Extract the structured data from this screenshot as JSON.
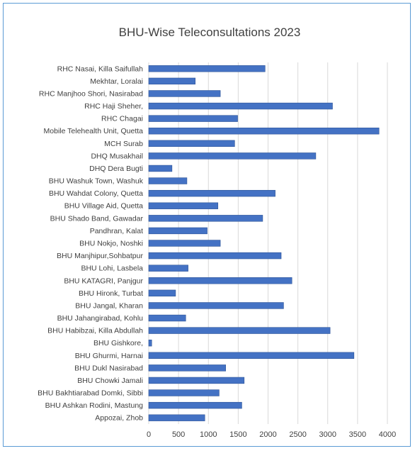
{
  "chart_data": {
    "type": "bar",
    "orientation": "horizontal",
    "title": "BHU-Wise Teleconsultations 2023",
    "xlabel": "",
    "ylabel": "",
    "xlim": [
      0,
      4000
    ],
    "xticks": [
      0,
      500,
      1000,
      1500,
      2000,
      2500,
      3000,
      3500,
      4000
    ],
    "grid": true,
    "bar_color": "#4472c4",
    "categories": [
      "RHC Nasai, Killa Saifullah",
      "Mekhtar, Loralai",
      "RHC Manjhoo Shori, Nasirabad",
      "RHC Haji Sheher,",
      "RHC Chagai",
      "Mobile Telehealth Unit, Quetta",
      "MCH Surab",
      "DHQ Musakhail",
      "DHQ Dera Bugti",
      "BHU Washuk Town, Washuk",
      "BHU Wahdat Colony, Quetta",
      "BHU Village Aid, Quetta",
      "BHU Shado Band, Gawadar",
      "Pandhran, Kalat",
      "BHU Nokjo, Noshki",
      "BHU Manjhipur,Sohbatpur",
      "BHU Lohi, Lasbela",
      "BHU KATAGRI, Panjgur",
      "BHU Hironk, Turbat",
      "BHU Jangal, Kharan",
      "BHU Jahangirabad, Kohlu",
      "BHU Habibzai, Killa Abdullah",
      "BHU Gishkore,",
      "BHU Ghurmi, Harnai",
      "BHU Dukl Nasirabad",
      "BHU Chowki Jamali",
      "BHU Bakhtiarabad Domki, Sibbi",
      "BHU Ashkan Rodini, Mastung",
      "Appozai, Zhob"
    ],
    "values": [
      1950,
      780,
      1200,
      3080,
      1490,
      3860,
      1440,
      2800,
      390,
      640,
      2120,
      1160,
      1910,
      980,
      1200,
      2220,
      660,
      2400,
      450,
      2260,
      620,
      3040,
      50,
      3440,
      1290,
      1600,
      1180,
      1560,
      940
    ]
  }
}
